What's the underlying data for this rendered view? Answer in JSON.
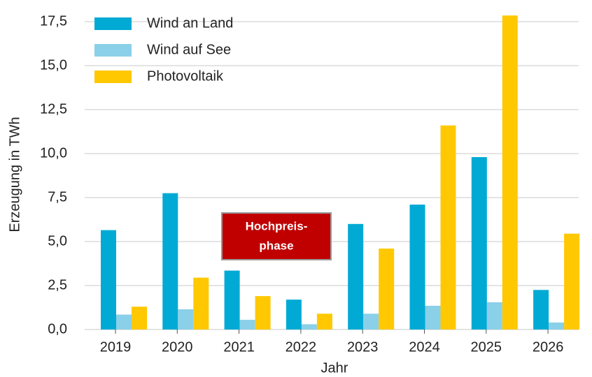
{
  "chart_data": {
    "type": "bar",
    "categories": [
      "2019",
      "2020",
      "2021",
      "2022",
      "2023",
      "2024",
      "2025",
      "2026"
    ],
    "series": [
      {
        "name": "Wind an Land",
        "color": "#00aad4",
        "values": [
          5.65,
          7.75,
          3.35,
          1.7,
          6.0,
          7.1,
          9.8,
          2.25
        ]
      },
      {
        "name": "Wind auf See",
        "color": "#8ad0e8",
        "values": [
          0.85,
          1.15,
          0.55,
          0.3,
          0.9,
          1.35,
          1.55,
          0.4
        ]
      },
      {
        "name": "Photovoltaik",
        "color": "#ffc800",
        "values": [
          1.3,
          2.95,
          1.9,
          0.9,
          4.6,
          11.6,
          17.85,
          5.45
        ]
      }
    ],
    "ylim": [
      0,
      18
    ],
    "yticks": [
      {
        "value": 0,
        "label": "0,0"
      },
      {
        "value": 2.5,
        "label": "2,5"
      },
      {
        "value": 5,
        "label": "5,0"
      },
      {
        "value": 7.5,
        "label": "7,5"
      },
      {
        "value": 10,
        "label": "10,0"
      },
      {
        "value": 12.5,
        "label": "12,5"
      },
      {
        "value": 15,
        "label": "15,0"
      },
      {
        "value": 17.5,
        "label": "17,5"
      }
    ],
    "ylabel": "Erzeugung in TWh",
    "xlabel": "Jahr",
    "annotation_lines": [
      "Hochpreis-",
      "phase"
    ],
    "annotation_color": "#c00000",
    "grid": true,
    "legend": "upper left"
  }
}
